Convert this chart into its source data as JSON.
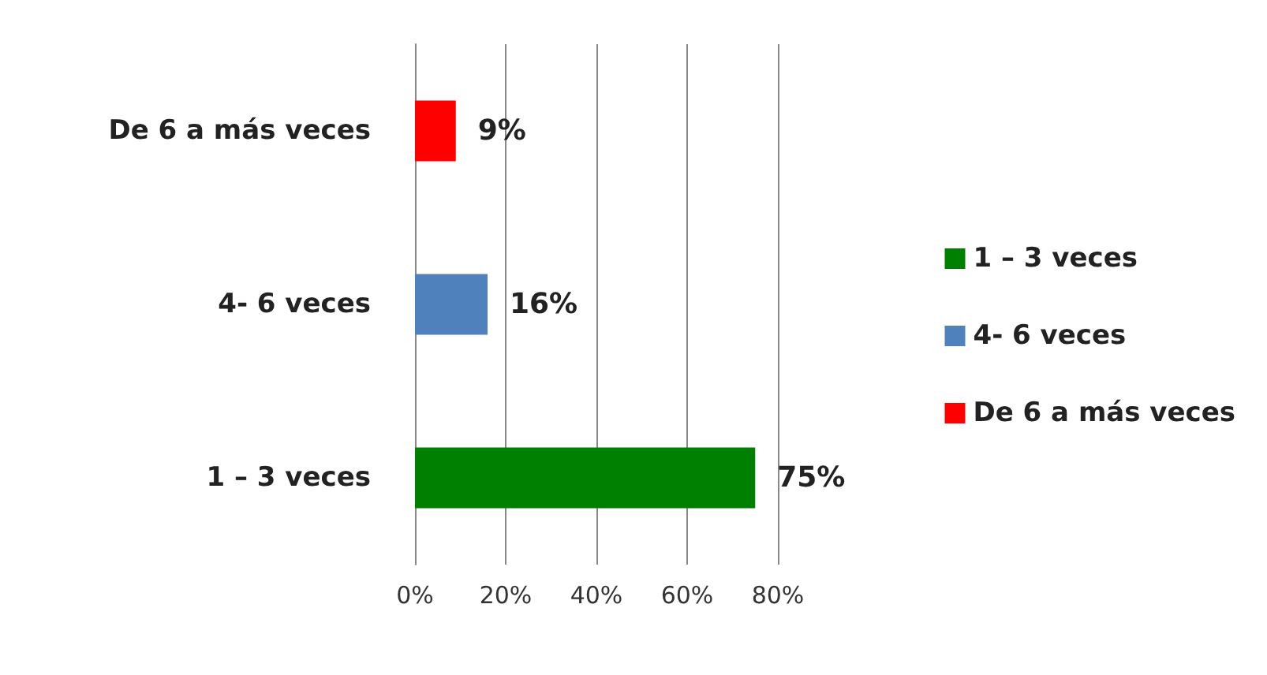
{
  "chart_data": {
    "type": "bar",
    "orientation": "horizontal",
    "categories": [
      "De 6 a más veces",
      "4- 6 veces",
      "1 – 3 veces"
    ],
    "series": [
      {
        "name": "1 – 3 veces",
        "color": "#008000",
        "values": [
          null,
          null,
          75
        ],
        "value_labels": [
          null,
          null,
          "75%"
        ]
      },
      {
        "name": "4- 6 veces",
        "color": "#4f81bd",
        "values": [
          null,
          16,
          null
        ],
        "value_labels": [
          null,
          "16%",
          null
        ]
      },
      {
        "name": "De 6 a más veces",
        "color": "#ff0000",
        "values": [
          9,
          null,
          null
        ],
        "value_labels": [
          "9%",
          null,
          null
        ]
      }
    ],
    "xlim": [
      0,
      80
    ],
    "xticks": [
      {
        "value": 0,
        "label": "0%"
      },
      {
        "value": 20,
        "label": "20%"
      },
      {
        "value": 40,
        "label": "40%"
      },
      {
        "value": 60,
        "label": "60%"
      },
      {
        "value": 80,
        "label": "80%"
      }
    ],
    "grid": "x",
    "legend": "right"
  }
}
